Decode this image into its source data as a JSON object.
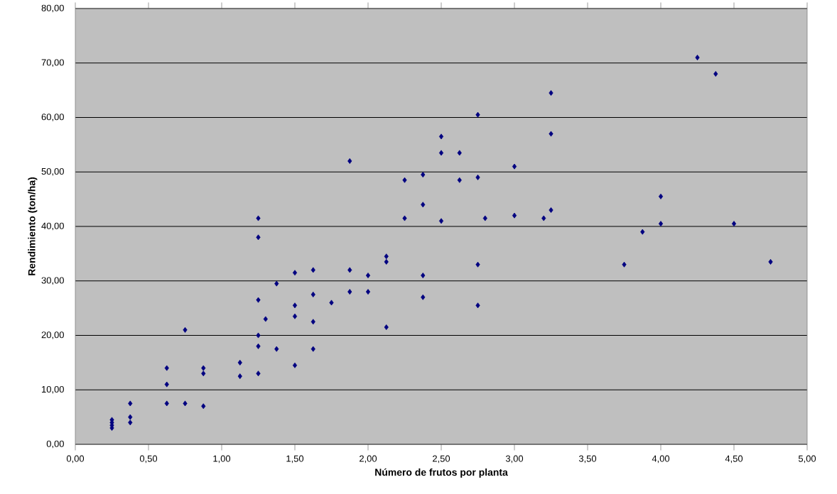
{
  "chart_data": {
    "type": "scatter",
    "xlabel": "Número de frutos por planta",
    "ylabel": "Rendimiento (ton/ha)",
    "x": [
      0.25,
      0.25,
      0.25,
      0.25,
      0.375,
      0.375,
      0.375,
      0.625,
      0.625,
      0.625,
      0.75,
      0.75,
      0.875,
      0.875,
      0.875,
      1.125,
      1.125,
      1.25,
      1.25,
      1.25,
      1.25,
      1.25,
      1.25,
      1.3,
      1.375,
      1.375,
      1.5,
      1.5,
      1.5,
      1.5,
      1.625,
      1.625,
      1.625,
      1.625,
      1.75,
      1.875,
      1.875,
      1.875,
      2.0,
      2.0,
      2.125,
      2.125,
      2.125,
      2.25,
      2.25,
      2.375,
      2.375,
      2.375,
      2.375,
      2.5,
      2.5,
      2.5,
      2.625,
      2.625,
      2.75,
      2.75,
      2.75,
      2.75,
      2.8,
      3.0,
      3.0,
      3.2,
      3.25,
      3.25,
      3.25,
      3.75,
      3.875,
      4.0,
      4.0,
      4.25,
      4.375,
      4.5,
      4.75
    ],
    "values": [
      4.5,
      4.0,
      3.5,
      3.0,
      7.5,
      5.0,
      4.0,
      14,
      11,
      7.5,
      21,
      7.5,
      14,
      13,
      7,
      15,
      12.5,
      41.5,
      38,
      26.5,
      20,
      18,
      13,
      23,
      29.5,
      17.5,
      31.5,
      25.5,
      23.5,
      14.5,
      32,
      27.5,
      22.5,
      17.5,
      26,
      52,
      32,
      28,
      31,
      28,
      34.5,
      33.5,
      21.5,
      48.5,
      41.5,
      49.5,
      44,
      31,
      27,
      56.5,
      53.5,
      41,
      53.5,
      48.5,
      60.5,
      49,
      33,
      25.5,
      41.5,
      51,
      42,
      41.5,
      64.5,
      57,
      43,
      33,
      39,
      45.5,
      40.5,
      71,
      68,
      40.5,
      33.5
    ],
    "color": "#000080",
    "marker": "diamond",
    "grid": "y",
    "xlim": [
      0,
      5
    ],
    "ylim": [
      0,
      80
    ],
    "xticks": [
      {
        "value": 0,
        "label": "0,00"
      },
      {
        "value": 0.5,
        "label": "0,50"
      },
      {
        "value": 1,
        "label": "1,00"
      },
      {
        "value": 1.5,
        "label": "1,50"
      },
      {
        "value": 2,
        "label": "2,00"
      },
      {
        "value": 2.5,
        "label": "2,50"
      },
      {
        "value": 3,
        "label": "3,00"
      },
      {
        "value": 3.5,
        "label": "3,50"
      },
      {
        "value": 4,
        "label": "4,00"
      },
      {
        "value": 4.5,
        "label": "4,50"
      },
      {
        "value": 5,
        "label": "5,00"
      }
    ],
    "yticks": [
      {
        "value": 0,
        "label": "0,00"
      },
      {
        "value": 10,
        "label": "10,00"
      },
      {
        "value": 20,
        "label": "20,00"
      },
      {
        "value": 30,
        "label": "30,00"
      },
      {
        "value": 40,
        "label": "40,00"
      },
      {
        "value": 50,
        "label": "50,00"
      },
      {
        "value": 60,
        "label": "60,00"
      },
      {
        "value": 70,
        "label": "70,00"
      },
      {
        "value": 80,
        "label": "80,00"
      }
    ]
  }
}
